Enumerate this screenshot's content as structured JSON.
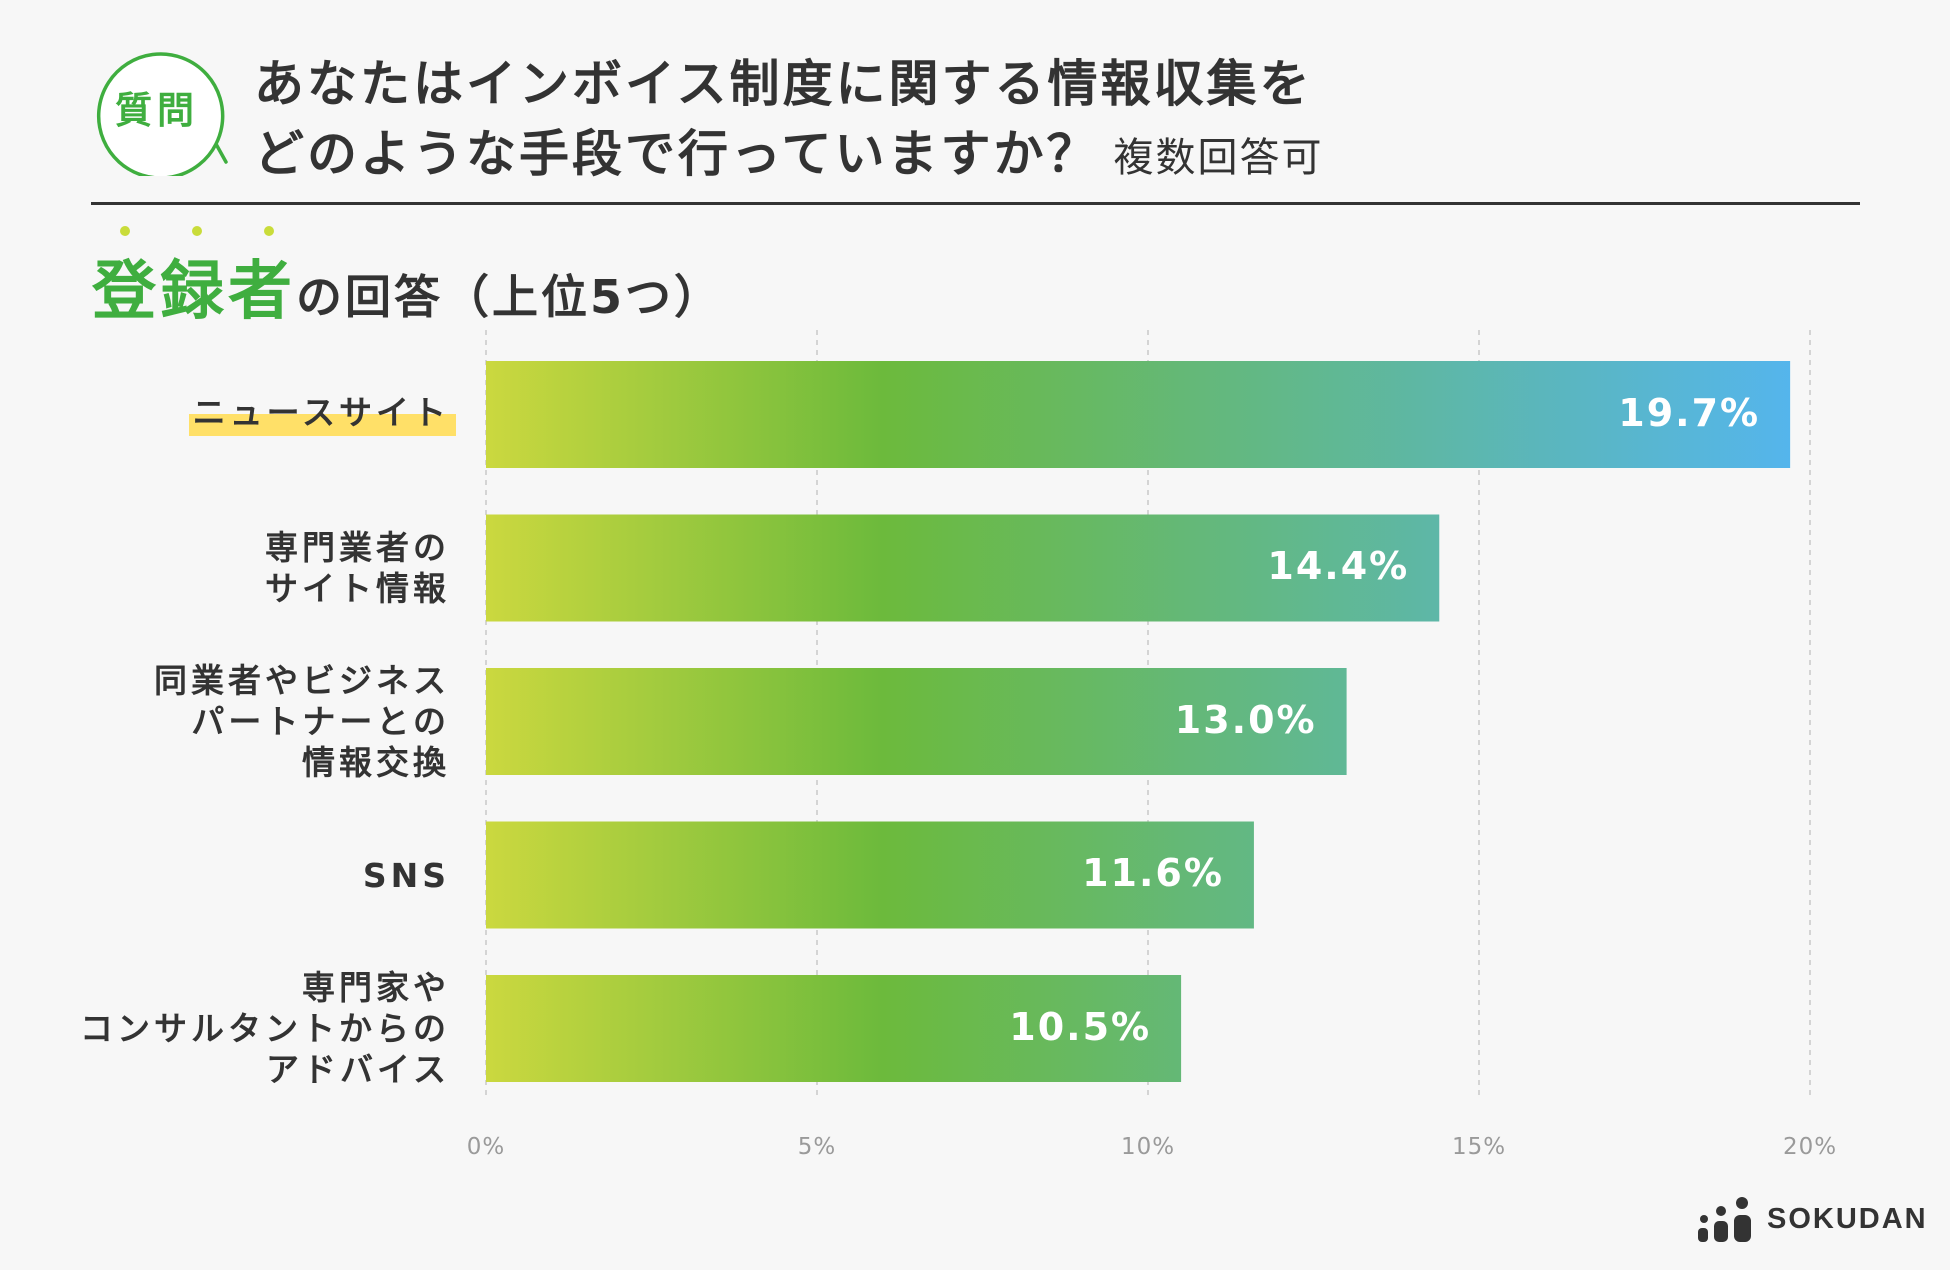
{
  "question": {
    "badge": "質問",
    "line1": "あなたはインボイス制度に関する情報収集を",
    "line2": "どのような手段で行っていますか？",
    "note": "複数回答可"
  },
  "subheading": {
    "accent": "登録者",
    "rest": "の回答（上位5つ）"
  },
  "chart_data": {
    "type": "bar",
    "orientation": "horizontal",
    "categories": [
      "ニュースサイト",
      "専門業者の\nサイト情報",
      "同業者やビジネス\nパートナーとの\n情報交換",
      "SNS",
      "専門家や\nコンサルタントからの\nアドバイス"
    ],
    "values": [
      19.7,
      14.4,
      13.0,
      11.6,
      10.5
    ],
    "value_labels": [
      "19.7%",
      "14.4%",
      "13.0%",
      "11.6%",
      "10.5%"
    ],
    "xlim": [
      0,
      20
    ],
    "x_ticks": [
      "0%",
      "5%",
      "10%",
      "15%",
      "20%"
    ],
    "grid": "vertical dashed",
    "gradient_colors": [
      "#cbd83f",
      "#6cba3c",
      "#54b5f0"
    ],
    "highlight_color": "#ffe068"
  },
  "brand": {
    "name": "SOKUDAN"
  }
}
